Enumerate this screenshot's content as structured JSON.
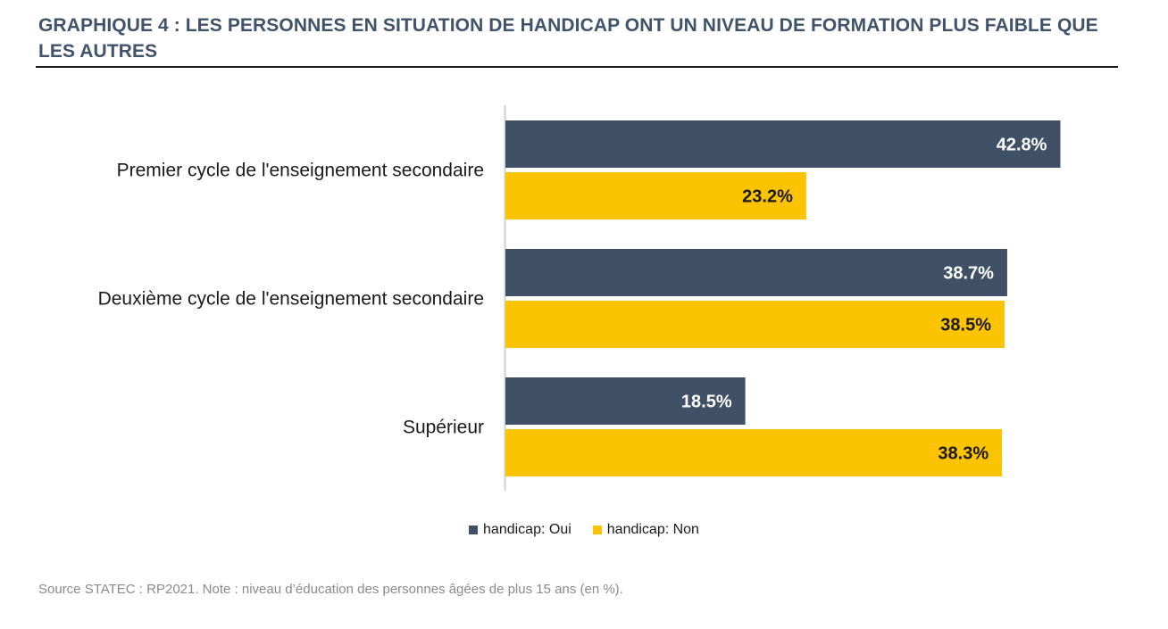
{
  "chart_data": {
    "type": "bar",
    "orientation": "horizontal",
    "title": "GRAPHIQUE 4 : LES PERSONNES EN SITUATION DE HANDICAP ONT UN NIVEAU DE FORMATION PLUS FAIBLE QUE LES AUTRES",
    "categories": [
      "Premier cycle de l'enseignement secondaire",
      "Deuxième cycle de l'enseignement secondaire",
      "Supérieur"
    ],
    "series": [
      {
        "name": "handicap: Oui",
        "values": [
          42.8,
          38.7,
          18.5
        ],
        "labels": [
          "42.8%",
          "38.7%",
          "18.5%"
        ],
        "color": "#3f5067",
        "label_color": "#ffffff"
      },
      {
        "name": "handicap: Non",
        "values": [
          23.2,
          38.5,
          38.3
        ],
        "labels": [
          "23.2%",
          "38.5%",
          "38.3%"
        ],
        "color": "#fcc300",
        "label_color": "#1a1a1a"
      }
    ],
    "xlim": [
      0,
      50
    ],
    "grid": false,
    "legend_position": "bottom",
    "source": "Source STATEC : RP2021. Note : niveau d’éducation des personnes âgées de plus 15 ans (en %)."
  }
}
